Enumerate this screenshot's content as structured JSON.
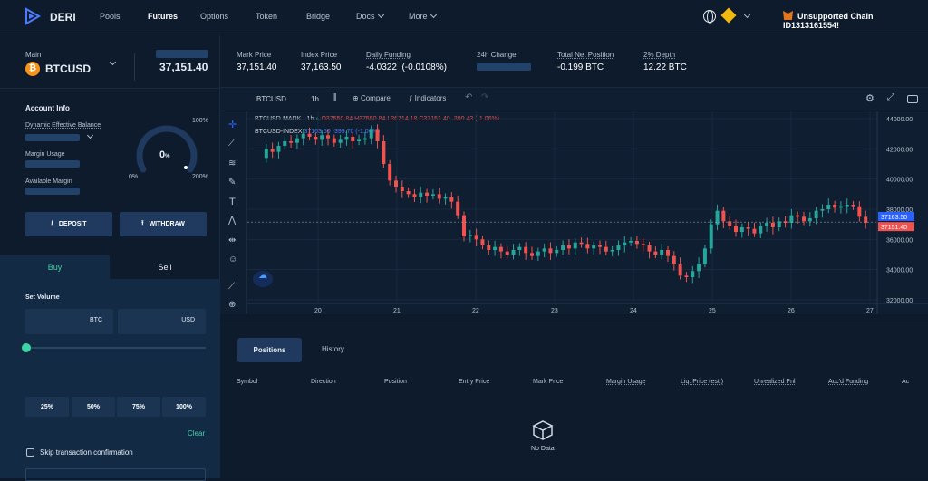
{
  "nav": {
    "brand": "DERI",
    "items": [
      "Pools",
      "Futures",
      "Options",
      "Token",
      "Bridge",
      "Docs",
      "More"
    ],
    "chain_warning": "Unsupported Chain ID1313161554!"
  },
  "market": {
    "main_label": "Main",
    "symbol": "BTCUSD",
    "price": "37,151.40"
  },
  "stats": [
    {
      "label": "Mark Price",
      "value": "37,151.40"
    },
    {
      "label": "Index Price",
      "value": "37,163.50"
    },
    {
      "label": "Daily Funding",
      "value": "-4.0322  (-0.0108%)"
    },
    {
      "label": "24h Change",
      "value": ""
    },
    {
      "label": "Total Net Position",
      "value": "-0.199 BTC"
    },
    {
      "label": "2% Depth",
      "value": "12.22 BTC"
    }
  ],
  "account": {
    "title": "Account Info",
    "dyn_balance": "Dynamic Effective Balance",
    "margin_usage": "Margin Usage",
    "available_margin": "Available Margin",
    "gauge_value": "0",
    "gauge_unit": "%",
    "gauge_min": "0%",
    "gauge_100": "100%",
    "gauge_200": "200%",
    "deposit": "DEPOSIT",
    "withdraw": "WITHDRAW"
  },
  "trade": {
    "buy": "Buy",
    "sell": "Sell",
    "set_volume": "Set Volume",
    "unit_btc": "BTC",
    "unit_usd": "USD",
    "pcts": [
      "25%",
      "50%",
      "75%",
      "100%"
    ],
    "clear": "Clear",
    "skip": "Skip transaction confirmation"
  },
  "toolbar": {
    "symbol": "BTCUSD",
    "interval": "1h",
    "compare": "Compare",
    "indicators": "Indicators"
  },
  "chart_legend": {
    "line1_name": "BTCUSD-MARK · 1h",
    "o": "O37550.84",
    "h": "H37550.84",
    "l": "L36714.18",
    "c": "C37151.40",
    "chg": "-399.43 (-1.06%)",
    "line2_name": "BTCUSD-INDEX",
    "line2_val": "37163.50",
    "line2_chg": "-399.70 (-1.06%)"
  },
  "colors": {
    "up": "#26a69a",
    "down": "#ef5350",
    "index_tag": "#2962ff",
    "mark_tag": "#ef5350"
  },
  "chart_data": {
    "type": "candlestick",
    "x_ticks": [
      "20",
      "21",
      "22",
      "23",
      "24",
      "25",
      "26",
      "27"
    ],
    "y_ticks": [
      "44000.00",
      "42000.00",
      "40000.00",
      "38000.00",
      "36000.00",
      "34000.00",
      "32000.00"
    ],
    "ylim": [
      32000,
      44000
    ],
    "index_tag": "37163.50",
    "mark_tag": "37151.40",
    "series_path": [
      41400,
      42000,
      41800,
      42200,
      42500,
      42400,
      42700,
      43000,
      42800,
      42600,
      42900,
      42700,
      42400,
      42600,
      42800,
      42500,
      42600,
      42700,
      43300,
      42500,
      41000,
      39900,
      39500,
      39200,
      39000,
      38800,
      39100,
      38900,
      39000,
      38700,
      38800,
      38500,
      37600,
      36200,
      36300,
      36000,
      35600,
      35300,
      35500,
      35200,
      35000,
      35300,
      35500,
      35100,
      34900,
      35200,
      35400,
      35100,
      35300,
      35600,
      35400,
      35800,
      35700,
      35400,
      35600,
      35500,
      35200,
      35300,
      35600,
      35800,
      35900,
      35700,
      35600,
      35200,
      35000,
      35300,
      34900,
      34400,
      33600,
      33500,
      33900,
      34400,
      35400,
      37000,
      37900,
      37200,
      36900,
      36500,
      36800,
      36700,
      36400,
      36900,
      37100,
      36800,
      37200,
      37100,
      37600,
      37500,
      37200,
      37400,
      37900,
      38000,
      38300,
      38100,
      38200,
      38300,
      38200,
      37500,
      37100
    ]
  },
  "bottom": {
    "tab_positions": "Positions",
    "tab_history": "History",
    "columns": [
      "Symbol",
      "Direction",
      "Position",
      "Entry Price",
      "Mark Price",
      "Margin Usage",
      "Liq. Price (est.)",
      "Unrealized Pnl",
      "Acc'd Funding",
      "Ac"
    ],
    "empty": "No Data"
  }
}
